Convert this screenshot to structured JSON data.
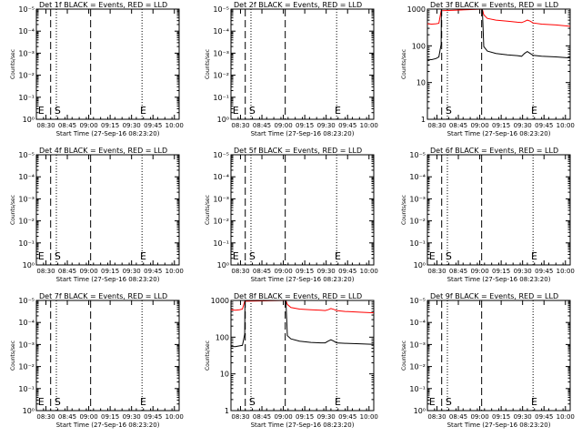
{
  "chart_data": [
    {
      "type": "line",
      "title": "Det 1f BLACK = Events, RED = LLD",
      "xlabel": "Start Time (27-Sep-16 08:23:20)",
      "ylabel": "Counts/sec",
      "yscale": "log",
      "ylim": [
        1,
        1000
      ],
      "y_ticks": [
        "10⁰",
        "10⁻¹",
        "10⁻²",
        "10⁻³",
        "10⁻⁴",
        "10⁻⁵"
      ],
      "x_ticks": [
        "08:30",
        "08:45",
        "09:00",
        "09:15",
        "09:30",
        "09:45",
        "10:00"
      ],
      "x_tick_positions_min": [
        6.67,
        21.67,
        36.67,
        51.67,
        66.67,
        81.67,
        96.67
      ],
      "xlim_min": [
        0,
        100
      ],
      "vlines_dashed_min": [
        10,
        38
      ],
      "vlines_dotted_min": [
        14,
        74
      ],
      "markers": [
        {
          "label": "E",
          "x_min": 0.5
        },
        {
          "label": "S",
          "x_min": 12
        },
        {
          "label": "E",
          "x_min": 72
        }
      ],
      "series": []
    },
    {
      "type": "line",
      "title": "Det 2f BLACK = Events, RED = LLD",
      "xlabel": "Start Time (27-Sep-16 08:23:20)",
      "ylabel": "Counts/sec",
      "yscale": "log",
      "ylim": [
        1,
        1000
      ],
      "y_ticks": [
        "10⁰",
        "10⁻¹",
        "10⁻²",
        "10⁻³",
        "10⁻⁴",
        "10⁻⁵"
      ],
      "x_ticks": [
        "08:30",
        "08:45",
        "09:00",
        "09:15",
        "09:30",
        "09:45",
        "10:00"
      ],
      "x_tick_positions_min": [
        6.67,
        21.67,
        36.67,
        51.67,
        66.67,
        81.67,
        96.67
      ],
      "xlim_min": [
        0,
        100
      ],
      "vlines_dashed_min": [
        10,
        38
      ],
      "vlines_dotted_min": [
        14,
        74
      ],
      "markers": [
        {
          "label": "E",
          "x_min": 0.5
        },
        {
          "label": "S",
          "x_min": 12
        },
        {
          "label": "E",
          "x_min": 72
        }
      ],
      "series": []
    },
    {
      "type": "line",
      "title": "Det 3f BLACK = Events, RED = LLD",
      "xlabel": "Start Time (27-Sep-16 08:23:20)",
      "ylabel": "Counts/sec",
      "yscale": "log",
      "ylim": [
        1,
        1000
      ],
      "y_ticks": [
        "1",
        "10",
        "100",
        "1000"
      ],
      "x_ticks": [
        "08:30",
        "08:45",
        "09:00",
        "09:15",
        "09:30",
        "09:45",
        "10:00"
      ],
      "x_tick_positions_min": [
        6.67,
        21.67,
        36.67,
        51.67,
        66.67,
        81.67,
        96.67
      ],
      "xlim_min": [
        0,
        100
      ],
      "vlines_dashed_min": [
        10,
        38
      ],
      "vlines_dotted_min": [
        14,
        74
      ],
      "markers": [
        {
          "label": "S",
          "x_min": 12
        },
        {
          "label": "E",
          "x_min": 72
        }
      ],
      "series": [
        {
          "name": "RED = LLD",
          "color": "#ff0000",
          "x": [
            0,
            3,
            6,
            8,
            9.6,
            38.5,
            39.5,
            42,
            48,
            56,
            63,
            66,
            68,
            70,
            72,
            74,
            80,
            90,
            100
          ],
          "y": [
            400,
            390,
            400,
            410,
            900,
            1000,
            700,
            560,
            500,
            470,
            440,
            430,
            460,
            500,
            470,
            420,
            390,
            370,
            340
          ]
        },
        {
          "name": "BLACK = Events",
          "color": "#000000",
          "x": [
            0,
            3,
            6,
            8,
            9.6,
            9.8,
            38.5,
            39.5,
            42,
            48,
            56,
            63,
            66,
            68,
            70,
            72,
            74,
            80,
            90,
            100
          ],
          "y": [
            43,
            42,
            45,
            50,
            110,
            1000,
            1000,
            95,
            72,
            62,
            57,
            54,
            52,
            62,
            70,
            62,
            55,
            52,
            50,
            47
          ]
        }
      ]
    },
    {
      "type": "line",
      "title": "Det 4f BLACK = Events, RED = LLD",
      "xlabel": "Start Time (27-Sep-16 08:23:20)",
      "ylabel": "Counts/sec",
      "yscale": "log",
      "ylim": [
        1,
        1000
      ],
      "y_ticks": [
        "10⁰",
        "10⁻¹",
        "10⁻²",
        "10⁻³",
        "10⁻⁴",
        "10⁻⁵"
      ],
      "x_ticks": [
        "08:30",
        "08:45",
        "09:00",
        "09:15",
        "09:30",
        "09:45",
        "10:00"
      ],
      "x_tick_positions_min": [
        6.67,
        21.67,
        36.67,
        51.67,
        66.67,
        81.67,
        96.67
      ],
      "xlim_min": [
        0,
        100
      ],
      "vlines_dashed_min": [
        10,
        38
      ],
      "vlines_dotted_min": [
        14,
        74
      ],
      "markers": [
        {
          "label": "E",
          "x_min": 0.5
        },
        {
          "label": "S",
          "x_min": 12
        },
        {
          "label": "E",
          "x_min": 72
        }
      ],
      "series": []
    },
    {
      "type": "line",
      "title": "Det 5f BLACK = Events, RED = LLD",
      "xlabel": "Start Time (27-Sep-16 08:23:20)",
      "ylabel": "Counts/sec",
      "yscale": "log",
      "ylim": [
        1,
        1000
      ],
      "y_ticks": [
        "10⁰",
        "10⁻¹",
        "10⁻²",
        "10⁻³",
        "10⁻⁴",
        "10⁻⁵"
      ],
      "x_ticks": [
        "08:30",
        "08:45",
        "09:00",
        "09:15",
        "09:30",
        "09:45",
        "10:00"
      ],
      "x_tick_positions_min": [
        6.67,
        21.67,
        36.67,
        51.67,
        66.67,
        81.67,
        96.67
      ],
      "xlim_min": [
        0,
        100
      ],
      "vlines_dashed_min": [
        10,
        38
      ],
      "vlines_dotted_min": [
        14,
        74
      ],
      "markers": [
        {
          "label": "E",
          "x_min": 0.5
        },
        {
          "label": "S",
          "x_min": 12
        },
        {
          "label": "E",
          "x_min": 72
        }
      ],
      "series": []
    },
    {
      "type": "line",
      "title": "Det 6f BLACK = Events, RED = LLD",
      "xlabel": "Start Time (27-Sep-16 08:23:20)",
      "ylabel": "Counts/sec",
      "yscale": "log",
      "ylim": [
        1,
        1000
      ],
      "y_ticks": [
        "10⁰",
        "10⁻¹",
        "10⁻²",
        "10⁻³",
        "10⁻⁴",
        "10⁻⁵"
      ],
      "x_ticks": [
        "08:30",
        "08:45",
        "09:00",
        "09:15",
        "09:30",
        "09:45",
        "10:00"
      ],
      "x_tick_positions_min": [
        6.67,
        21.67,
        36.67,
        51.67,
        66.67,
        81.67,
        96.67
      ],
      "xlim_min": [
        0,
        100
      ],
      "vlines_dashed_min": [
        10,
        38
      ],
      "vlines_dotted_min": [
        14,
        74
      ],
      "markers": [
        {
          "label": "E",
          "x_min": 0.5
        },
        {
          "label": "S",
          "x_min": 12
        },
        {
          "label": "E",
          "x_min": 72
        }
      ],
      "series": []
    },
    {
      "type": "line",
      "title": "Det 7f BLACK = Events, RED = LLD",
      "xlabel": "Start Time (27-Sep-16 08:23:20)",
      "ylabel": "Counts/sec",
      "yscale": "log",
      "ylim": [
        1,
        1000
      ],
      "y_ticks": [
        "10⁰",
        "10⁻¹",
        "10⁻²",
        "10⁻³",
        "10⁻⁴",
        "10⁻⁵"
      ],
      "x_ticks": [
        "08:30",
        "08:45",
        "09:00",
        "09:15",
        "09:30",
        "09:45",
        "10:00"
      ],
      "x_tick_positions_min": [
        6.67,
        21.67,
        36.67,
        51.67,
        66.67,
        81.67,
        96.67
      ],
      "xlim_min": [
        0,
        100
      ],
      "vlines_dashed_min": [
        10,
        38
      ],
      "vlines_dotted_min": [
        14,
        74
      ],
      "markers": [
        {
          "label": "E",
          "x_min": 0.5
        },
        {
          "label": "S",
          "x_min": 12
        },
        {
          "label": "E",
          "x_min": 72
        }
      ],
      "series": []
    },
    {
      "type": "line",
      "title": "Det 8f BLACK = Events, RED = LLD",
      "xlabel": "Start Time (27-Sep-16 08:23:20)",
      "ylabel": "Counts/sec",
      "yscale": "log",
      "ylim": [
        1,
        1000
      ],
      "y_ticks": [
        "1",
        "10",
        "100",
        "1000"
      ],
      "x_ticks": [
        "08:30",
        "08:45",
        "09:00",
        "09:15",
        "09:30",
        "09:45",
        "10:00"
      ],
      "x_tick_positions_min": [
        6.67,
        21.67,
        36.67,
        51.67,
        66.67,
        81.67,
        96.67
      ],
      "xlim_min": [
        0,
        100
      ],
      "vlines_dashed_min": [
        10,
        38
      ],
      "vlines_dotted_min": [
        14,
        74
      ],
      "markers": [
        {
          "label": "S",
          "x_min": 12
        },
        {
          "label": "E",
          "x_min": 72
        }
      ],
      "series": [
        {
          "name": "RED = LLD",
          "color": "#ff0000",
          "x": [
            0,
            3,
            6,
            8,
            9.6,
            38.5,
            39.5,
            42,
            48,
            56,
            63,
            66,
            68,
            70,
            72,
            74,
            80,
            90,
            100
          ],
          "y": [
            560,
            540,
            560,
            580,
            950,
            1000,
            780,
            640,
            580,
            560,
            540,
            530,
            560,
            600,
            570,
            530,
            500,
            480,
            460
          ]
        },
        {
          "name": "BLACK = Events",
          "color": "#000000",
          "x": [
            0,
            3,
            6,
            8,
            9.6,
            9.8,
            38.5,
            39.5,
            42,
            48,
            56,
            63,
            66,
            68,
            70,
            72,
            74,
            80,
            90,
            100
          ],
          "y": [
            56,
            55,
            58,
            60,
            120,
            1000,
            1000,
            110,
            90,
            78,
            72,
            70,
            70,
            78,
            85,
            78,
            70,
            68,
            66,
            64
          ]
        }
      ]
    },
    {
      "type": "line",
      "title": "Det 9f BLACK = Events, RED = LLD",
      "xlabel": "Start Time (27-Sep-16 08:23:20)",
      "ylabel": "Counts/sec",
      "yscale": "log",
      "ylim": [
        1,
        1000
      ],
      "y_ticks": [
        "10⁰",
        "10⁻¹",
        "10⁻²",
        "10⁻³",
        "10⁻⁴",
        "10⁻⁵"
      ],
      "x_ticks": [
        "08:30",
        "08:45",
        "09:00",
        "09:15",
        "09:30",
        "09:45",
        "10:00"
      ],
      "x_tick_positions_min": [
        6.67,
        21.67,
        36.67,
        51.67,
        66.67,
        81.67,
        96.67
      ],
      "xlim_min": [
        0,
        100
      ],
      "vlines_dashed_min": [
        10,
        38
      ],
      "vlines_dotted_min": [
        14,
        74
      ],
      "markers": [
        {
          "label": "E",
          "x_min": 0.5
        },
        {
          "label": "S",
          "x_min": 12
        },
        {
          "label": "E",
          "x_min": 72
        }
      ],
      "series": []
    }
  ]
}
